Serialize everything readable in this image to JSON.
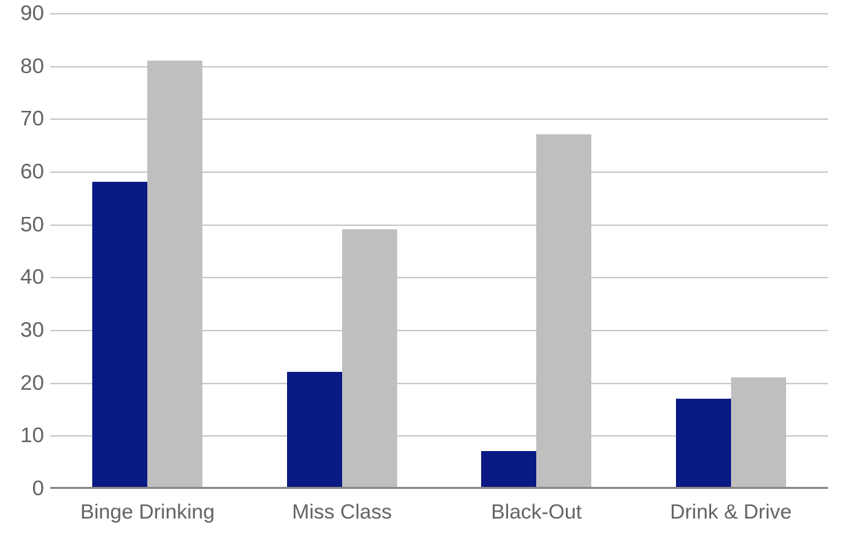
{
  "chart_data": {
    "type": "bar",
    "title": "",
    "xlabel": "",
    "ylabel": "",
    "categories": [
      "Binge Drinking",
      "Miss Class",
      "Black-Out",
      "Drink & Drive"
    ],
    "series": [
      {
        "name": "navy-series",
        "color": "#0a1a85",
        "values": [
          58,
          22,
          7,
          17
        ]
      },
      {
        "name": "gray-series",
        "color": "#bfbfbf",
        "values": [
          81,
          49,
          67,
          21
        ]
      }
    ],
    "ylim": [
      0,
      90
    ],
    "ytick_step": 10,
    "ytick_labels": [
      "0",
      "10",
      "20",
      "30",
      "40",
      "50",
      "60",
      "70",
      "80",
      "90"
    ],
    "grid": true,
    "legend": false,
    "colors": {
      "background": "#ffffff",
      "gridline": "#c9c9c9",
      "baseline": "#8a8a8a",
      "axis_text": "#636363"
    }
  }
}
